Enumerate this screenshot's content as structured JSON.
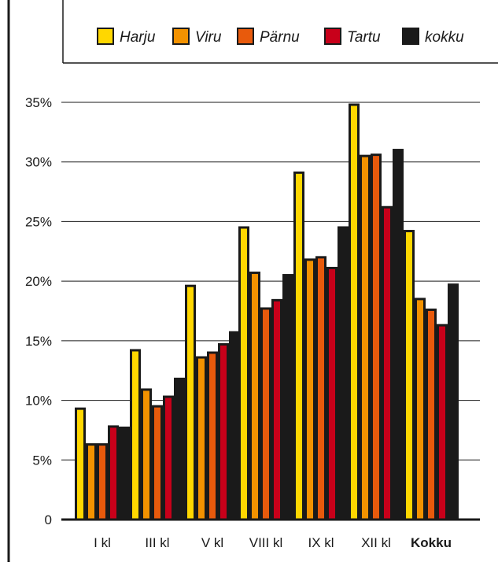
{
  "chart_data": {
    "type": "bar",
    "categories": [
      "I kl",
      "III kl",
      "V kl",
      "VIII kl",
      "IX kl",
      "XII kl",
      "Kokku"
    ],
    "bold_categories": [
      "Kokku"
    ],
    "series": [
      {
        "name": "Harju",
        "color": "#FFD700",
        "values": [
          9.4,
          14.3,
          19.7,
          24.6,
          29.2,
          34.9,
          24.3
        ]
      },
      {
        "name": "Viru",
        "color": "#F39200",
        "values": [
          6.4,
          11.0,
          13.7,
          20.8,
          21.9,
          30.6,
          18.6
        ]
      },
      {
        "name": "Pärnu",
        "color": "#E85A0C",
        "values": [
          6.4,
          9.6,
          14.1,
          17.8,
          22.1,
          30.7,
          17.7
        ]
      },
      {
        "name": "Tartu",
        "color": "#C8001A",
        "values": [
          7.9,
          10.4,
          14.8,
          18.5,
          21.2,
          26.3,
          16.4
        ]
      },
      {
        "name": "kokku",
        "color": "#1A1A1A",
        "values": [
          7.8,
          11.9,
          15.8,
          20.6,
          24.6,
          31.1,
          19.8
        ]
      }
    ],
    "y_ticks": [
      "0",
      "5%",
      "10%",
      "15%",
      "20%",
      "25%",
      "30%",
      "35%"
    ],
    "ylim": [
      0,
      35
    ],
    "grid": true,
    "legend_position": "top",
    "legend_style": "italic"
  }
}
